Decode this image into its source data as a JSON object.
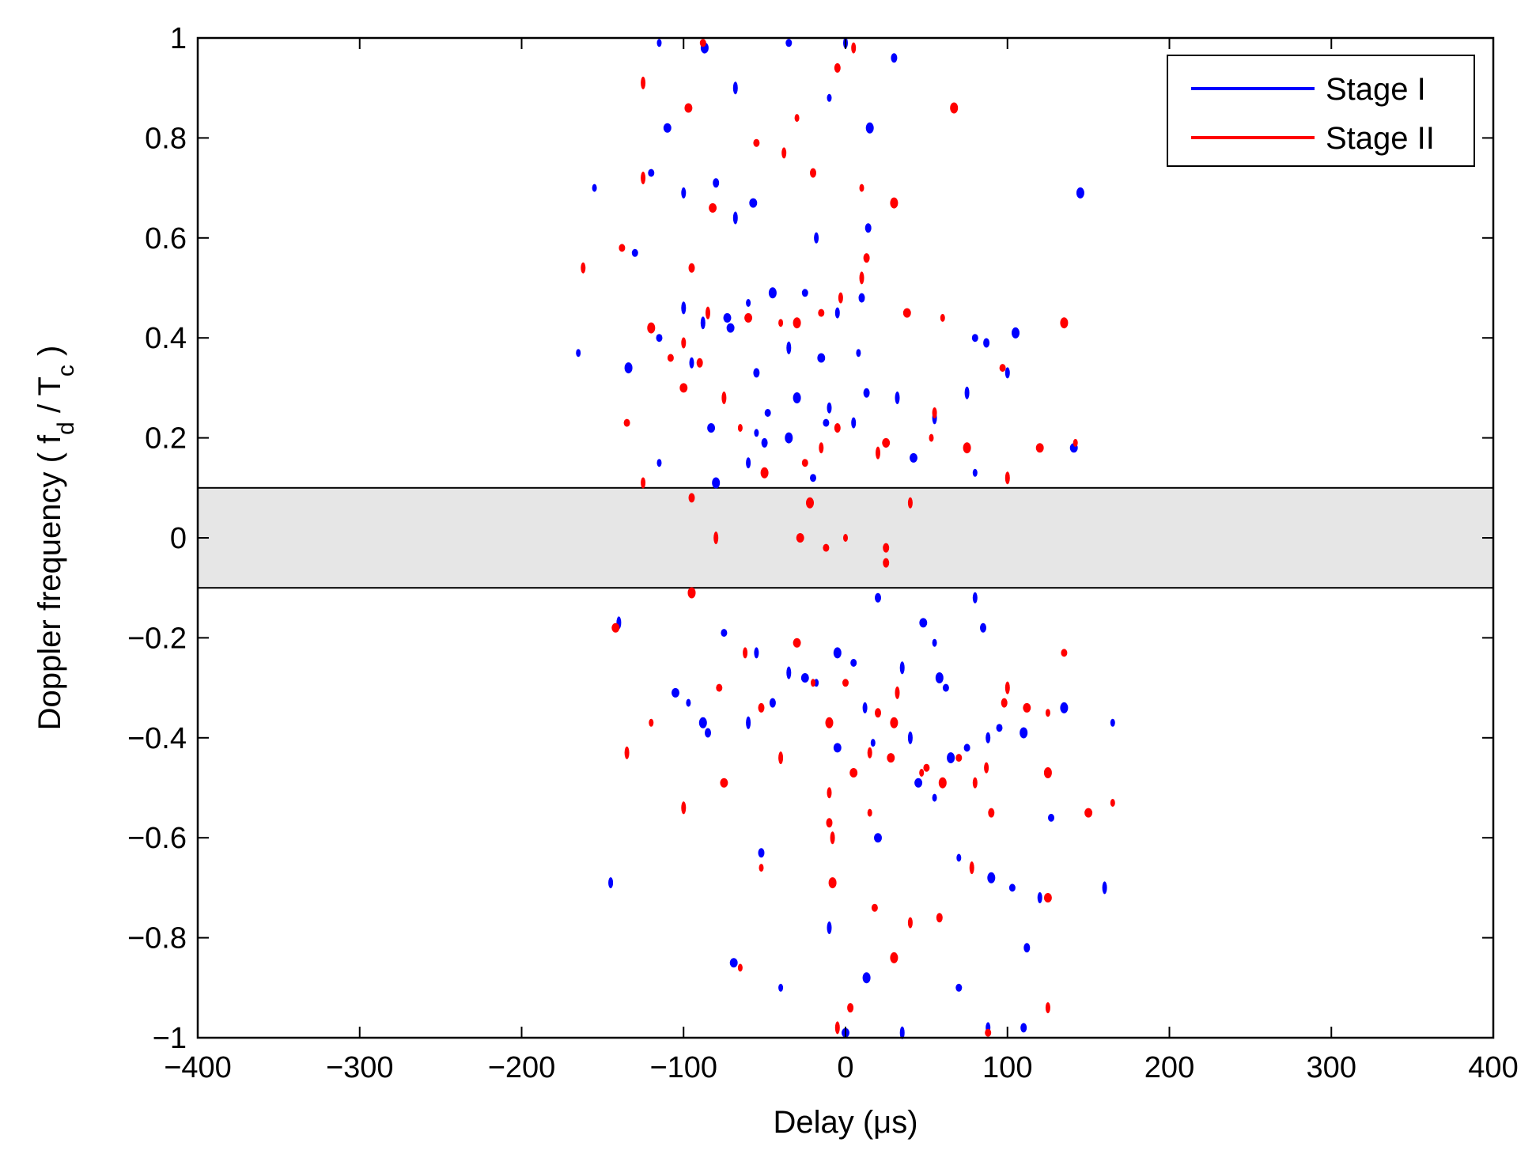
{
  "chart_data": {
    "type": "scatter",
    "xlabel": "Delay (μs)",
    "ylabel_main": "Doppler frequency ( f",
    "ylabel_sub1": "d",
    "ylabel_mid": " / T",
    "ylabel_sub2": "c",
    "ylabel_end": " )",
    "xlim": [
      -400,
      400
    ],
    "ylim": [
      -1,
      1
    ],
    "xticks": [
      -400,
      -300,
      -200,
      -100,
      0,
      100,
      200,
      300,
      400
    ],
    "xtick_labels": [
      "−400",
      "−300",
      "−200",
      "−100",
      "0",
      "100",
      "200",
      "300",
      "400"
    ],
    "yticks": [
      -1,
      -0.8,
      -0.6,
      -0.4,
      -0.2,
      0,
      0.2,
      0.4,
      0.6,
      0.8,
      1
    ],
    "ytick_labels": [
      "−1",
      "−0.8",
      "−0.6",
      "−0.4",
      "−0.2",
      "0",
      "0.2",
      "0.4",
      "0.6",
      "0.8",
      "1"
    ],
    "grid": false,
    "legend_position": "top-right",
    "shaded_band": {
      "y_min": -0.1,
      "y_max": 0.1,
      "color": "#e6e6e6"
    },
    "series": [
      {
        "name": "Stage I",
        "color": "#0000ff",
        "points": [
          [
            -115,
            0.99
          ],
          [
            -87,
            0.98
          ],
          [
            -35,
            0.99
          ],
          [
            0,
            0.99
          ],
          [
            30,
            0.96
          ],
          [
            -68,
            0.9
          ],
          [
            -110,
            0.82
          ],
          [
            -10,
            0.88
          ],
          [
            15,
            0.82
          ],
          [
            -120,
            0.73
          ],
          [
            -100,
            0.69
          ],
          [
            -80,
            0.71
          ],
          [
            -68,
            0.64
          ],
          [
            -57,
            0.67
          ],
          [
            -155,
            0.7
          ],
          [
            145,
            0.69
          ],
          [
            -130,
            0.57
          ],
          [
            -18,
            0.6
          ],
          [
            14,
            0.62
          ],
          [
            -100,
            0.46
          ],
          [
            -73,
            0.44
          ],
          [
            -60,
            0.47
          ],
          [
            -45,
            0.49
          ],
          [
            -25,
            0.49
          ],
          [
            -5,
            0.45
          ],
          [
            10,
            0.48
          ],
          [
            -88,
            0.43
          ],
          [
            -71,
            0.42
          ],
          [
            -165,
            0.37
          ],
          [
            -134,
            0.34
          ],
          [
            -115,
            0.4
          ],
          [
            -95,
            0.35
          ],
          [
            -55,
            0.33
          ],
          [
            -35,
            0.38
          ],
          [
            -15,
            0.36
          ],
          [
            8,
            0.37
          ],
          [
            -30,
            0.28
          ],
          [
            -48,
            0.25
          ],
          [
            -10,
            0.26
          ],
          [
            13,
            0.29
          ],
          [
            32,
            0.28
          ],
          [
            -83,
            0.22
          ],
          [
            -55,
            0.21
          ],
          [
            -35,
            0.2
          ],
          [
            -12,
            0.23
          ],
          [
            5,
            0.23
          ],
          [
            25,
            0.19
          ],
          [
            55,
            0.24
          ],
          [
            42,
            0.16
          ],
          [
            80,
            0.13
          ],
          [
            105,
            0.41
          ],
          [
            80,
            0.4
          ],
          [
            100,
            0.33
          ],
          [
            87,
            0.39
          ],
          [
            75,
            0.29
          ],
          [
            141,
            0.18
          ],
          [
            -115,
            0.15
          ],
          [
            -80,
            0.11
          ],
          [
            -20,
            0.12
          ],
          [
            -60,
            0.15
          ],
          [
            -50,
            0.19
          ],
          [
            -140,
            -0.17
          ],
          [
            -105,
            -0.31
          ],
          [
            -97,
            -0.33
          ],
          [
            -88,
            -0.37
          ],
          [
            -75,
            -0.19
          ],
          [
            -55,
            -0.23
          ],
          [
            -45,
            -0.33
          ],
          [
            -35,
            -0.27
          ],
          [
            -25,
            -0.28
          ],
          [
            -18,
            -0.29
          ],
          [
            -5,
            -0.23
          ],
          [
            5,
            -0.25
          ],
          [
            12,
            -0.34
          ],
          [
            20,
            -0.12
          ],
          [
            35,
            -0.26
          ],
          [
            48,
            -0.17
          ],
          [
            55,
            -0.21
          ],
          [
            58,
            -0.28
          ],
          [
            62,
            -0.3
          ],
          [
            80,
            -0.12
          ],
          [
            85,
            -0.18
          ],
          [
            40,
            -0.4
          ],
          [
            45,
            -0.49
          ],
          [
            55,
            -0.52
          ],
          [
            65,
            -0.44
          ],
          [
            75,
            -0.42
          ],
          [
            88,
            -0.4
          ],
          [
            -85,
            -0.39
          ],
          [
            -60,
            -0.37
          ],
          [
            -5,
            -0.42
          ],
          [
            17,
            -0.41
          ],
          [
            110,
            -0.39
          ],
          [
            127,
            -0.56
          ],
          [
            -145,
            -0.69
          ],
          [
            -52,
            -0.63
          ],
          [
            -10,
            -0.78
          ],
          [
            20,
            -0.6
          ],
          [
            70,
            -0.64
          ],
          [
            90,
            -0.68
          ],
          [
            103,
            -0.7
          ],
          [
            120,
            -0.72
          ],
          [
            112,
            -0.82
          ],
          [
            160,
            -0.7
          ],
          [
            -69,
            -0.85
          ],
          [
            -40,
            -0.9
          ],
          [
            13,
            -0.88
          ],
          [
            70,
            -0.9
          ],
          [
            88,
            -0.98
          ],
          [
            110,
            -0.98
          ],
          [
            35,
            -0.99
          ],
          [
            0,
            -0.99
          ],
          [
            165,
            -0.37
          ],
          [
            135,
            -0.34
          ],
          [
            95,
            -0.38
          ]
        ]
      },
      {
        "name": "Stage II",
        "color": "#ff0000",
        "points": [
          [
            -88,
            0.99
          ],
          [
            5,
            0.98
          ],
          [
            -5,
            0.94
          ],
          [
            -125,
            0.91
          ],
          [
            -97,
            0.86
          ],
          [
            -30,
            0.84
          ],
          [
            67,
            0.86
          ],
          [
            -55,
            0.79
          ],
          [
            -38,
            0.77
          ],
          [
            -20,
            0.73
          ],
          [
            -125,
            0.72
          ],
          [
            -82,
            0.66
          ],
          [
            10,
            0.7
          ],
          [
            30,
            0.67
          ],
          [
            -138,
            0.58
          ],
          [
            -162,
            0.54
          ],
          [
            -95,
            0.54
          ],
          [
            -85,
            0.45
          ],
          [
            -60,
            0.44
          ],
          [
            -40,
            0.43
          ],
          [
            -30,
            0.43
          ],
          [
            -15,
            0.45
          ],
          [
            -3,
            0.48
          ],
          [
            13,
            0.56
          ],
          [
            10,
            0.52
          ],
          [
            38,
            0.45
          ],
          [
            60,
            0.44
          ],
          [
            -120,
            0.42
          ],
          [
            -108,
            0.36
          ],
          [
            -100,
            0.39
          ],
          [
            -90,
            0.35
          ],
          [
            -75,
            0.28
          ],
          [
            -100,
            0.3
          ],
          [
            -65,
            0.22
          ],
          [
            -50,
            0.13
          ],
          [
            -25,
            0.15
          ],
          [
            -15,
            0.18
          ],
          [
            -5,
            0.22
          ],
          [
            20,
            0.17
          ],
          [
            25,
            0.19
          ],
          [
            53,
            0.2
          ],
          [
            75,
            0.18
          ],
          [
            -135,
            0.23
          ],
          [
            -125,
            0.11
          ],
          [
            -95,
            0.08
          ],
          [
            -80,
            0.0
          ],
          [
            -28,
            0.0
          ],
          [
            0,
            0.0
          ],
          [
            -22,
            0.07
          ],
          [
            -12,
            -0.02
          ],
          [
            40,
            0.07
          ],
          [
            25,
            -0.02
          ],
          [
            100,
            0.12
          ],
          [
            120,
            0.18
          ],
          [
            142,
            0.19
          ],
          [
            135,
            0.43
          ],
          [
            97,
            0.34
          ],
          [
            55,
            0.25
          ],
          [
            25,
            -0.05
          ],
          [
            -135,
            -0.43
          ],
          [
            -142,
            -0.18
          ],
          [
            -120,
            -0.37
          ],
          [
            -95,
            -0.11
          ],
          [
            -78,
            -0.3
          ],
          [
            -62,
            -0.23
          ],
          [
            -52,
            -0.34
          ],
          [
            -40,
            -0.44
          ],
          [
            -30,
            -0.21
          ],
          [
            -20,
            -0.29
          ],
          [
            -10,
            -0.37
          ],
          [
            0,
            -0.29
          ],
          [
            15,
            -0.43
          ],
          [
            20,
            -0.35
          ],
          [
            32,
            -0.31
          ],
          [
            28,
            -0.44
          ],
          [
            47,
            -0.47
          ],
          [
            60,
            -0.49
          ],
          [
            70,
            -0.44
          ],
          [
            87,
            -0.46
          ],
          [
            98,
            -0.33
          ],
          [
            100,
            -0.3
          ],
          [
            112,
            -0.34
          ],
          [
            125,
            -0.35
          ],
          [
            125,
            -0.47
          ],
          [
            135,
            -0.23
          ],
          [
            -10,
            -0.51
          ],
          [
            -10,
            -0.57
          ],
          [
            -8,
            -0.6
          ],
          [
            5,
            -0.47
          ],
          [
            15,
            -0.55
          ],
          [
            30,
            -0.37
          ],
          [
            50,
            -0.46
          ],
          [
            80,
            -0.49
          ],
          [
            90,
            -0.55
          ],
          [
            -100,
            -0.54
          ],
          [
            -75,
            -0.49
          ],
          [
            -52,
            -0.66
          ],
          [
            -8,
            -0.69
          ],
          [
            18,
            -0.74
          ],
          [
            40,
            -0.77
          ],
          [
            58,
            -0.76
          ],
          [
            78,
            -0.66
          ],
          [
            125,
            -0.72
          ],
          [
            -65,
            -0.86
          ],
          [
            30,
            -0.84
          ],
          [
            88,
            -0.99
          ],
          [
            125,
            -0.94
          ],
          [
            3,
            -0.94
          ],
          [
            -5,
            -0.98
          ],
          [
            150,
            -0.55
          ],
          [
            165,
            -0.53
          ]
        ]
      }
    ]
  }
}
